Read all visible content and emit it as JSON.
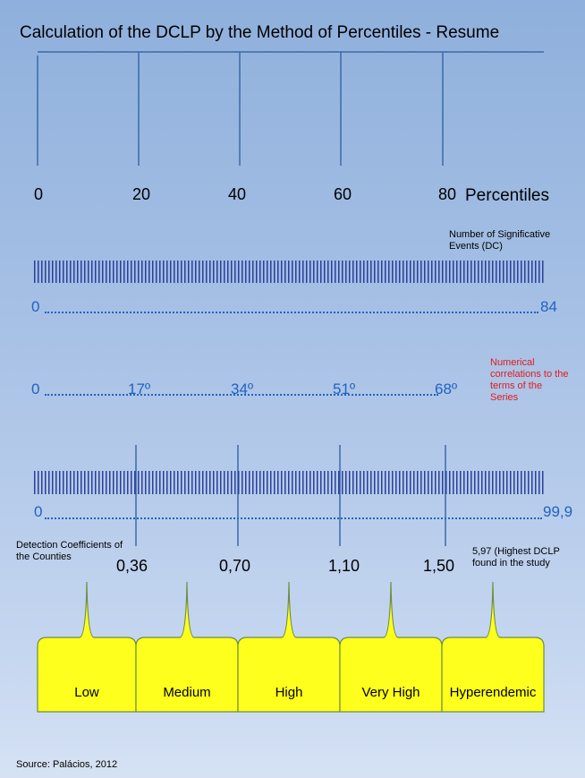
{
  "title": "Calculation of the DCLP by the Method of Percentiles - Resume",
  "percentiles": {
    "labels": [
      "0",
      "20",
      "40",
      "60",
      "80"
    ],
    "axis_label": "Percentiles"
  },
  "events": {
    "label": "Number of Significative Events (DC)",
    "start": "0",
    "end": "84"
  },
  "terms": {
    "labels": [
      "0",
      "17º",
      "34º",
      "51º",
      "68º"
    ],
    "note": "Numerical correlations to the terms of the Series"
  },
  "coefficients": {
    "start": "0",
    "end": "99,9",
    "label": "Detection Coefficients of the Counties",
    "values": [
      "0,36",
      "0,70",
      "1,10",
      "1,50"
    ],
    "note": "5,97 (Highest DCLP found in the study"
  },
  "classes": [
    "Low",
    "Medium",
    "High",
    "Very High",
    "Hyperendemic"
  ],
  "source": "Source: Palácios, 2012"
}
